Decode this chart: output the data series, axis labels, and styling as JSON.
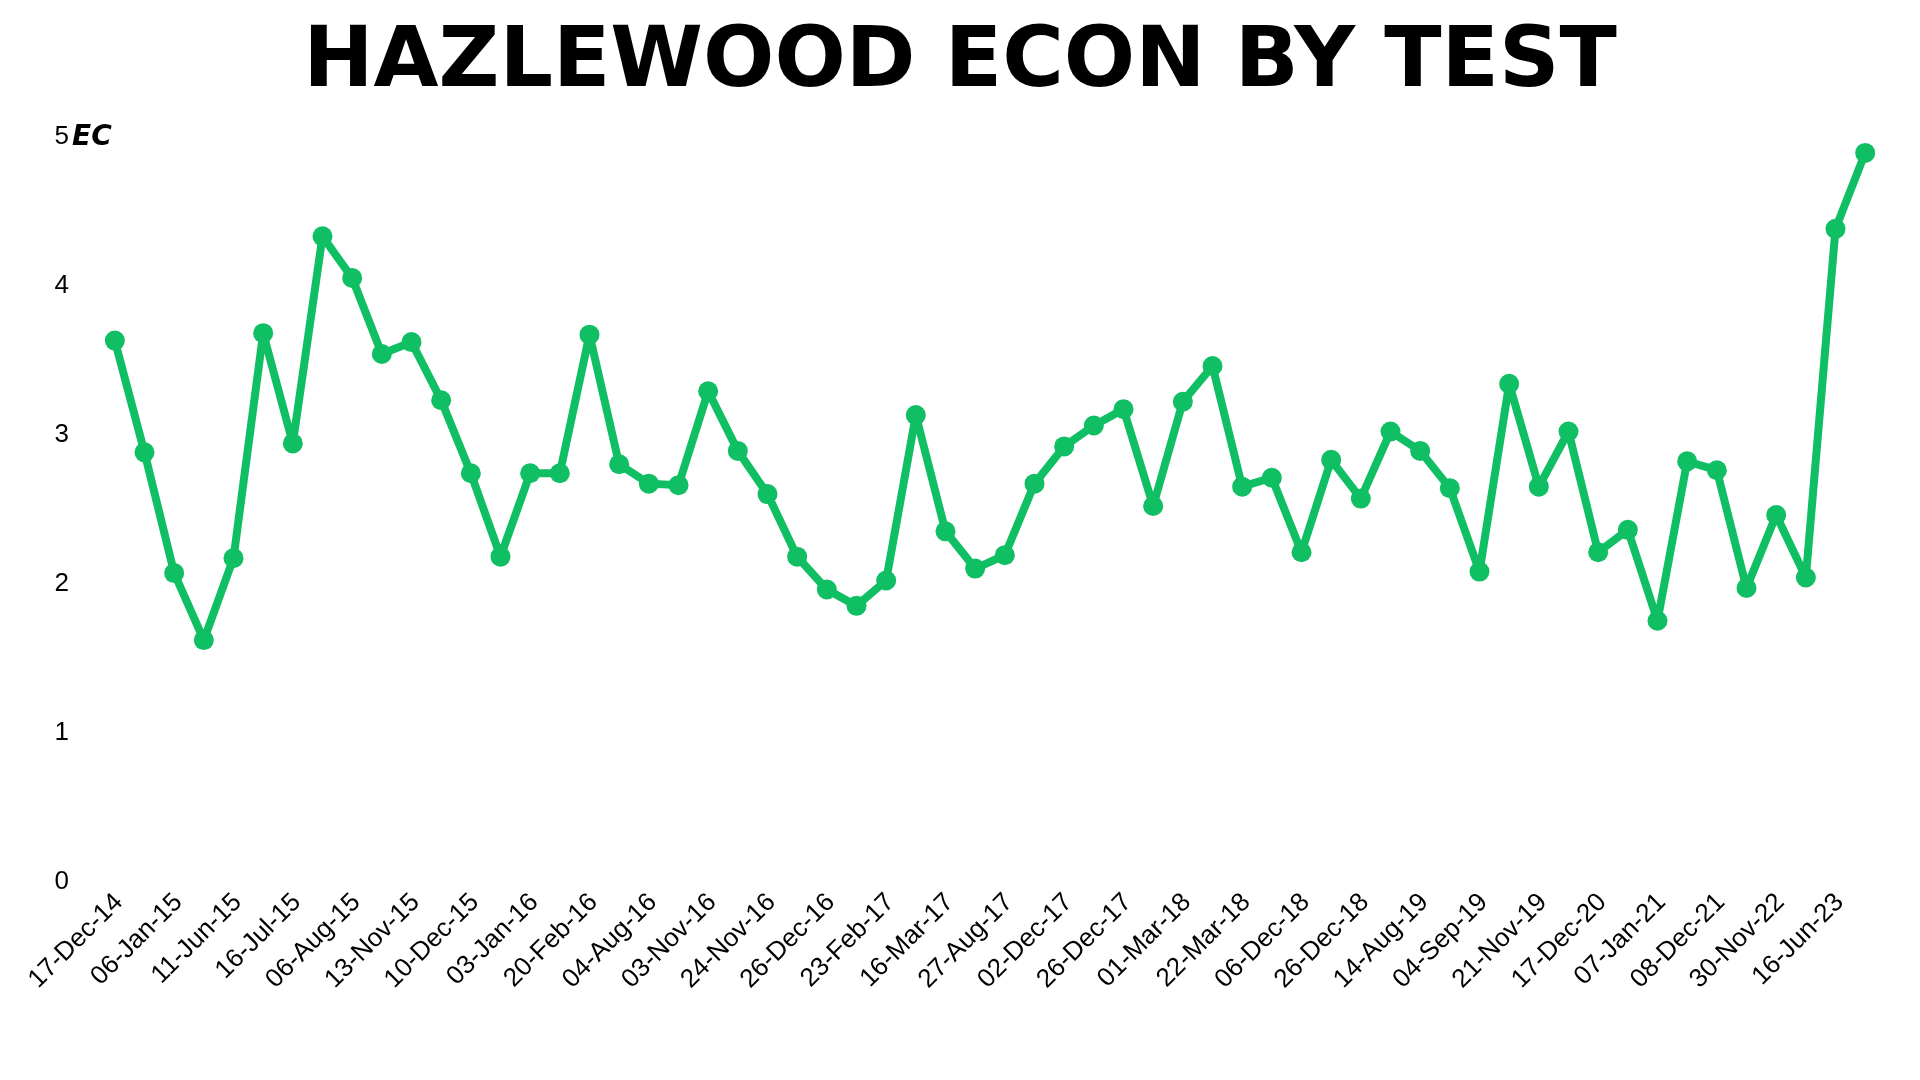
{
  "chart_data": {
    "type": "line",
    "title": "HAZLEWOOD ECON BY TEST",
    "ylabel": "EC",
    "categories": [
      "17-Dec-14",
      null,
      "06-Jan-15",
      null,
      "11-Jun-15",
      null,
      "16-Jul-15",
      null,
      "06-Aug-15",
      null,
      "13-Nov-15",
      null,
      "10-Dec-15",
      null,
      "03-Jan-16",
      null,
      "20-Feb-16",
      null,
      "04-Aug-16",
      null,
      "03-Nov-16",
      null,
      "24-Nov-16",
      null,
      "26-Dec-16",
      null,
      "23-Feb-17",
      null,
      "16-Mar-17",
      null,
      "27-Aug-17",
      null,
      "02-Dec-17",
      null,
      "26-Dec-17",
      null,
      "01-Mar-18",
      null,
      "22-Mar-18",
      null,
      "06-Dec-18",
      null,
      "26-Dec-18",
      null,
      "14-Aug-19",
      null,
      "04-Sep-19",
      null,
      "21-Nov-19",
      null,
      "17-Dec-20",
      null,
      "07-Jan-21",
      null,
      "08-Dec-21",
      null,
      "30-Nov-22",
      null,
      "16-Jun-23",
      null
    ],
    "series": [
      {
        "color": "#10bf63",
        "values": [
          3.62,
          2.87,
          2.06,
          1.61,
          2.16,
          3.67,
          2.93,
          4.32,
          4.04,
          3.53,
          3.61,
          3.22,
          2.73,
          2.17,
          2.73,
          2.73,
          3.66,
          2.79,
          2.66,
          2.65,
          3.28,
          2.88,
          2.59,
          2.17,
          1.95,
          1.84,
          2.01,
          3.12,
          2.34,
          2.09,
          2.18,
          2.66,
          2.91,
          3.05,
          3.16,
          2.51,
          3.21,
          3.45,
          2.64,
          2.7,
          2.2,
          2.82,
          2.56,
          3.01,
          2.88,
          2.63,
          2.07,
          3.33,
          2.64,
          3.01,
          2.2,
          2.35,
          1.74,
          2.81,
          2.75,
          1.96,
          2.45,
          2.03,
          4.37,
          4.88
        ]
      }
    ],
    "ylim": [
      0,
      5
    ],
    "yticks": [
      0,
      1,
      2,
      3,
      4,
      5
    ],
    "legend": false,
    "marker": "circle",
    "line_style": "solid"
  }
}
